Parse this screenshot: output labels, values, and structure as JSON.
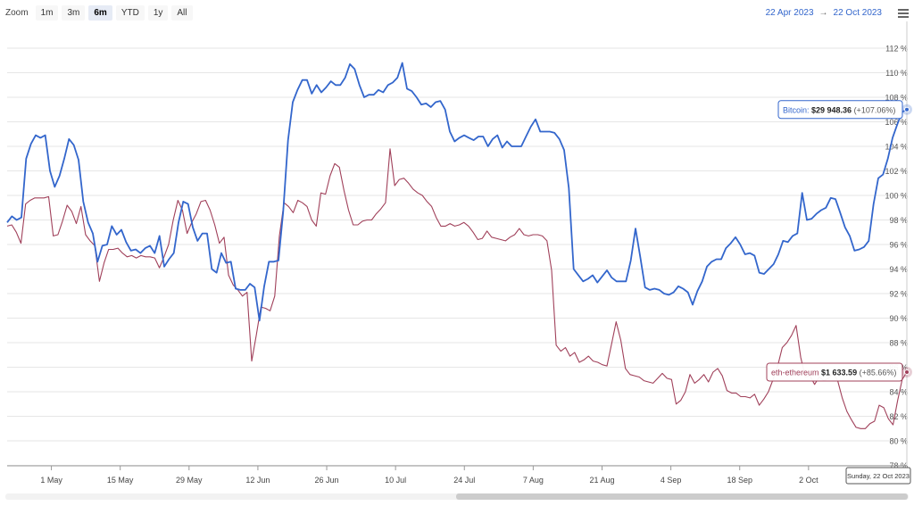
{
  "toolbar": {
    "zoom_label": "Zoom",
    "buttons": [
      "1m",
      "3m",
      "6m",
      "YTD",
      "1y",
      "All"
    ],
    "active": "6m"
  },
  "range": {
    "from": "22 Apr 2023",
    "arrow": "→",
    "to": "22 Oct 2023"
  },
  "icons": {
    "menu": "hamburger-menu-icon"
  },
  "colors": {
    "bitcoin": "#3366cc",
    "ethereum": "#a0405a",
    "grid": "#e6e6e6",
    "axis": "#999999"
  },
  "tooltips": {
    "bitcoin": {
      "name": "Bitcoin:",
      "value": "$29 948.36",
      "change": "(+107.06%)"
    },
    "ethereum": {
      "name": "eth-ethereum",
      "value": "$1 633.59",
      "change": "(+85.66%)"
    },
    "date": "Sunday, 22 Oct 2023"
  },
  "chart_data": {
    "type": "line",
    "x_tick_labels": [
      "1 May",
      "15 May",
      "29 May",
      "12 Jun",
      "26 Jun",
      "10 Jul",
      "24 Jul",
      "7 Aug",
      "21 Aug",
      "4 Sep",
      "18 Sep",
      "2 Oct"
    ],
    "y_tick_labels": [
      "78 %",
      "80 %",
      "82 %",
      "84 %",
      "86 %",
      "88 %",
      "90 %",
      "92 %",
      "94 %",
      "96 %",
      "98 %",
      "100 %",
      "102 %",
      "104 %",
      "106 %",
      "108 %",
      "110 %",
      "112 %"
    ],
    "x_range": [
      "2023-04-22",
      "2023-10-22"
    ],
    "ylim": [
      78,
      113
    ],
    "grid": "horizontal",
    "series": [
      {
        "name": "Bitcoin",
        "values": [
          97.8,
          98.3,
          98.0,
          98.2,
          103.0,
          104.2,
          104.9,
          104.7,
          104.9,
          102.0,
          100.7,
          101.6,
          103.0,
          104.6,
          104.1,
          102.9,
          99.5,
          97.8,
          96.9,
          94.6,
          95.9,
          96.0,
          97.5,
          96.8,
          97.2,
          96.2,
          95.5,
          95.6,
          95.3,
          95.7,
          95.9,
          95.3,
          96.7,
          94.2,
          94.8,
          95.3,
          97.8,
          99.5,
          99.3,
          97.4,
          96.3,
          96.9,
          96.9,
          94.0,
          93.7,
          95.3,
          94.5,
          94.6,
          92.4,
          92.3,
          92.3,
          92.8,
          92.5,
          89.8,
          92.6,
          94.6,
          94.6,
          94.7,
          98.7,
          104.5,
          107.6,
          108.6,
          109.4,
          109.4,
          108.3,
          109.0,
          108.4,
          108.8,
          109.3,
          109.0,
          109.0,
          109.6,
          110.7,
          110.3,
          109.0,
          108.0,
          108.2,
          108.2,
          108.6,
          108.4,
          109.0,
          109.2,
          109.6,
          110.8,
          108.7,
          108.5,
          108.0,
          107.4,
          107.5,
          107.2,
          107.6,
          107.7,
          107.0,
          105.2,
          104.4,
          104.7,
          104.9,
          104.7,
          104.5,
          104.8,
          104.8,
          104.0,
          104.6,
          104.9,
          103.9,
          104.4,
          104.0,
          104.0,
          104.0,
          104.8,
          105.6,
          106.2,
          105.2,
          105.2,
          105.2,
          105.1,
          104.6,
          103.7,
          100.6,
          94.0,
          93.5,
          93.0,
          93.2,
          93.5,
          92.9,
          93.4,
          93.9,
          93.3,
          93.0,
          93.0,
          93.0,
          94.7,
          97.3,
          95.0,
          92.5,
          92.3,
          92.4,
          92.3,
          92.0,
          91.9,
          92.1,
          92.6,
          92.4,
          92.1,
          91.1,
          92.2,
          93.0,
          94.2,
          94.6,
          94.8,
          94.8,
          95.7,
          96.1,
          96.6,
          96.0,
          95.2,
          95.3,
          95.1,
          93.7,
          93.6,
          94.0,
          94.4,
          95.2,
          96.3,
          96.2,
          96.7,
          96.9,
          100.2,
          98.0,
          98.1,
          98.5,
          98.8,
          99.0,
          99.8,
          99.7,
          98.6,
          97.4,
          96.7,
          95.5,
          95.6,
          95.8,
          96.3,
          99.3,
          101.4,
          101.7,
          103.0,
          104.7,
          105.8,
          106.8,
          107.0
        ],
        "last_label": "$29 948.36 (+107.06%)"
      },
      {
        "name": "eth-ethereum",
        "values": [
          97.5,
          97.6,
          97.0,
          96.1,
          99.3,
          99.6,
          99.8,
          99.8,
          99.8,
          99.9,
          96.7,
          96.8,
          97.9,
          99.2,
          98.7,
          97.7,
          99.1,
          96.8,
          96.3,
          95.9,
          93.0,
          94.5,
          95.6,
          95.6,
          95.7,
          95.3,
          95.0,
          95.1,
          94.9,
          95.1,
          95.0,
          95.0,
          94.9,
          94.1,
          95.0,
          96.0,
          98.0,
          99.6,
          98.8,
          96.9,
          97.8,
          98.5,
          99.5,
          99.6,
          98.8,
          97.6,
          96.1,
          96.6,
          93.5,
          92.7,
          92.3,
          91.8,
          92.1,
          86.5,
          88.6,
          90.9,
          90.8,
          90.6,
          91.8,
          96.7,
          99.4,
          99.1,
          98.6,
          99.6,
          99.4,
          99.1,
          98.0,
          97.5,
          100.2,
          100.1,
          101.6,
          102.6,
          102.3,
          100.4,
          98.8,
          97.6,
          97.6,
          97.9,
          98.0,
          98.0,
          98.5,
          98.9,
          99.4,
          103.8,
          100.8,
          101.3,
          101.4,
          101.0,
          100.5,
          100.2,
          100.0,
          99.5,
          99.1,
          98.2,
          97.5,
          97.5,
          97.7,
          97.5,
          97.6,
          97.8,
          97.5,
          97.0,
          96.4,
          96.5,
          97.1,
          96.6,
          96.5,
          96.4,
          96.3,
          96.6,
          96.8,
          97.3,
          96.8,
          96.7,
          96.8,
          96.8,
          96.7,
          96.3,
          93.9,
          87.8,
          87.3,
          87.6,
          86.9,
          87.2,
          86.4,
          86.6,
          86.9,
          86.5,
          86.4,
          86.2,
          86.1,
          87.9,
          89.7,
          88.2,
          85.9,
          85.4,
          85.3,
          85.2,
          84.9,
          84.8,
          84.7,
          85.1,
          85.5,
          85.1,
          85.0,
          83.0,
          83.3,
          84.0,
          85.4,
          84.7,
          85.0,
          85.4,
          84.8,
          85.6,
          85.9,
          85.3,
          84.1,
          83.9,
          83.9,
          83.6,
          83.6,
          83.5,
          83.8,
          82.9,
          83.4,
          84.0,
          85.0,
          86.1,
          87.6,
          88.0,
          88.6,
          89.4,
          86.8,
          85.2,
          85.3,
          84.6,
          85.2,
          84.9,
          85.1,
          85.5,
          84.9,
          83.5,
          82.4,
          81.7,
          81.1,
          81.0,
          81.0,
          81.4,
          81.6,
          82.9,
          82.7,
          81.8,
          81.3,
          83.3,
          85.0,
          85.6
        ],
        "last_label": "$1 633.59 (+85.66%)"
      }
    ]
  }
}
